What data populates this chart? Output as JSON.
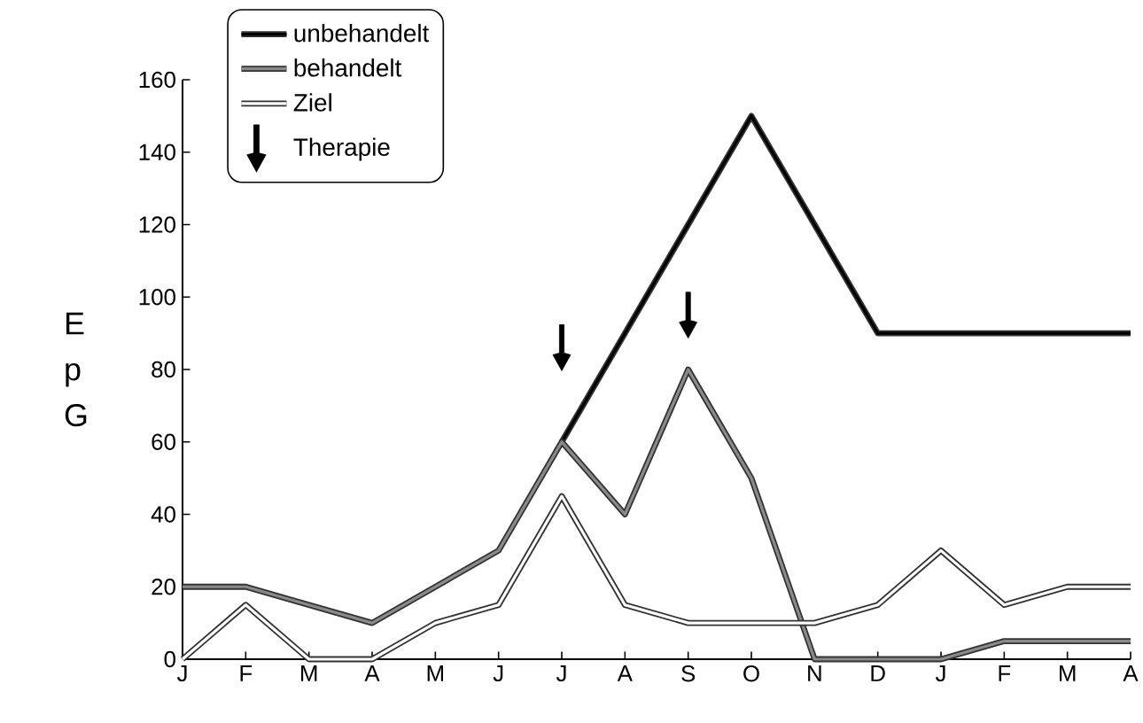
{
  "chart_data": {
    "type": "line",
    "ylabel": "E p G",
    "categories": [
      "J",
      "F",
      "M",
      "A",
      "M",
      "J",
      "J",
      "A",
      "S",
      "O",
      "N",
      "D",
      "J",
      "F",
      "M",
      "A"
    ],
    "series": [
      {
        "name": "unbehandelt",
        "color": "#000000",
        "values": [
          null,
          null,
          null,
          null,
          null,
          null,
          60,
          90,
          120,
          150,
          120,
          90,
          90,
          90,
          90,
          90
        ]
      },
      {
        "name": "behandelt",
        "color": "#8a8a8a",
        "values": [
          20,
          20,
          15,
          10,
          20,
          30,
          60,
          40,
          80,
          50,
          0,
          0,
          0,
          5,
          5,
          5
        ]
      },
      {
        "name": "Ziel",
        "color": "#ffffff",
        "values": [
          0,
          15,
          0,
          0,
          10,
          15,
          45,
          15,
          10,
          10,
          10,
          15,
          30,
          15,
          20,
          20
        ]
      },
      {
        "name": "Therapie",
        "type": "scatter",
        "color": "#000000",
        "values": [
          null,
          null,
          null,
          null,
          null,
          null,
          86,
          null,
          95,
          null,
          null,
          null,
          null,
          null,
          null,
          null
        ]
      }
    ],
    "ylim": [
      0,
      160
    ],
    "yticks": [
      0,
      20,
      40,
      60,
      80,
      100,
      120,
      140,
      160
    ],
    "legend": "top left"
  }
}
